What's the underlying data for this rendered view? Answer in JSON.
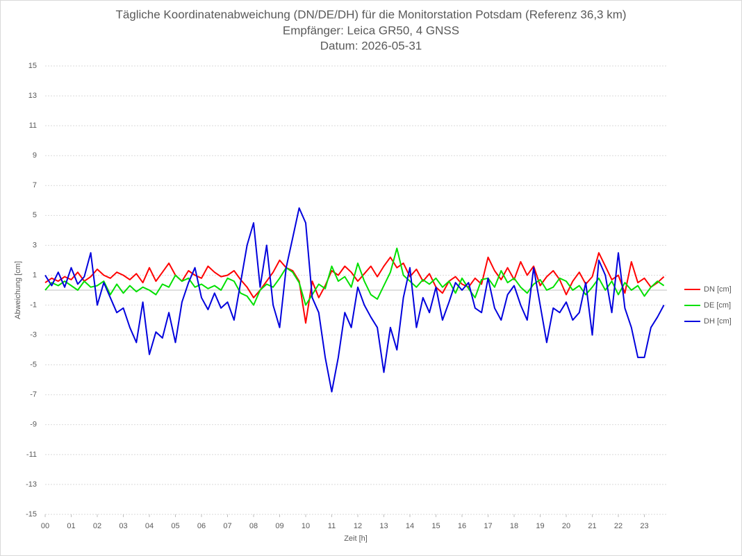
{
  "chart_data": {
    "type": "line",
    "title": "Tägliche Koordinatenabweichung (DN/DE/DH) für die Monitorstation Potsdam (Referenz 36,3 km)",
    "subtitle": "Empfänger: Leica GR50, 4 GNSS",
    "date_label": "Datum: 2026-05-31",
    "xlabel": "Zeit [h]",
    "ylabel": "Abweichung [cm]",
    "xlim": [
      0,
      24
    ],
    "ylim": [
      -15,
      15
    ],
    "yticks": [
      -15,
      -13,
      -11,
      -9,
      -7,
      -5,
      -3,
      -1,
      1,
      3,
      5,
      7,
      9,
      11,
      13,
      15
    ],
    "xticks": [
      {
        "value": 0,
        "label": "00"
      },
      {
        "value": 1,
        "label": "01"
      },
      {
        "value": 2,
        "label": "02"
      },
      {
        "value": 3,
        "label": "03"
      },
      {
        "value": 4,
        "label": "04"
      },
      {
        "value": 5,
        "label": "05"
      },
      {
        "value": 6,
        "label": "06"
      },
      {
        "value": 7,
        "label": "07"
      },
      {
        "value": 8,
        "label": "08"
      },
      {
        "value": 9,
        "label": "09"
      },
      {
        "value": 10,
        "label": "10"
      },
      {
        "value": 11,
        "label": "11"
      },
      {
        "value": 12,
        "label": "12"
      },
      {
        "value": 13,
        "label": "13"
      },
      {
        "value": 14,
        "label": "14"
      },
      {
        "value": 15,
        "label": "15"
      },
      {
        "value": 16,
        "label": "16"
      },
      {
        "value": 17,
        "label": "17"
      },
      {
        "value": 18,
        "label": "18"
      },
      {
        "value": 19,
        "label": "19"
      },
      {
        "value": 20,
        "label": "20"
      },
      {
        "value": 21,
        "label": "21"
      },
      {
        "value": 22,
        "label": "22"
      },
      {
        "value": 23,
        "label": "23"
      }
    ],
    "grid": true,
    "legend": "right",
    "x": [
      0,
      0.25,
      0.5,
      0.75,
      1,
      1.25,
      1.5,
      1.75,
      2,
      2.25,
      2.5,
      2.75,
      3,
      3.25,
      3.5,
      3.75,
      4,
      4.25,
      4.5,
      4.75,
      5,
      5.25,
      5.5,
      5.75,
      6,
      6.25,
      6.5,
      6.75,
      7,
      7.25,
      7.5,
      7.75,
      8,
      8.25,
      8.5,
      8.75,
      9,
      9.25,
      9.5,
      9.75,
      10,
      10.25,
      10.5,
      10.75,
      11,
      11.25,
      11.5,
      11.75,
      12,
      12.25,
      12.5,
      12.75,
      13,
      13.25,
      13.5,
      13.75,
      14,
      14.25,
      14.5,
      14.75,
      15,
      15.25,
      15.5,
      15.75,
      16,
      16.25,
      16.5,
      16.75,
      17,
      17.25,
      17.5,
      17.75,
      18,
      18.25,
      18.5,
      18.75,
      19,
      19.25,
      19.5,
      19.75,
      20,
      20.25,
      20.5,
      20.75,
      21,
      21.25,
      21.5,
      21.75,
      22,
      22.25,
      22.5,
      22.75,
      23,
      23.25,
      23.5,
      23.75
    ],
    "series": [
      {
        "name": "DN [cm]",
        "color": "#ff0000",
        "values": [
          0.5,
          0.8,
          0.6,
          0.9,
          0.7,
          1.2,
          0.6,
          0.9,
          1.4,
          1.0,
          0.8,
          1.2,
          1.0,
          0.7,
          1.1,
          0.5,
          1.5,
          0.6,
          1.2,
          1.8,
          1.0,
          0.6,
          1.3,
          1.0,
          0.8,
          1.6,
          1.2,
          0.9,
          1.0,
          1.3,
          0.7,
          0.2,
          -0.5,
          0.0,
          0.6,
          1.2,
          2.0,
          1.5,
          1.3,
          0.6,
          -2.2,
          0.6,
          -0.5,
          0.3,
          1.3,
          1.0,
          1.6,
          1.2,
          0.6,
          1.1,
          1.6,
          0.9,
          1.6,
          2.2,
          1.5,
          1.8,
          0.9,
          1.4,
          0.6,
          1.1,
          0.2,
          -0.2,
          0.6,
          0.9,
          0.4,
          0.2,
          0.8,
          0.4,
          2.2,
          1.3,
          0.7,
          1.5,
          0.7,
          1.9,
          1.0,
          1.6,
          0.3,
          0.9,
          1.3,
          0.7,
          -0.3,
          0.6,
          1.2,
          0.4,
          0.9,
          2.5,
          1.6,
          0.7,
          1.0,
          -0.2,
          1.9,
          0.5,
          0.8,
          0.2,
          0.5,
          0.9
        ]
      },
      {
        "name": "DE [cm]",
        "color": "#00e000",
        "values": [
          0.0,
          0.5,
          0.3,
          0.6,
          0.3,
          0.0,
          0.6,
          0.2,
          0.3,
          0.6,
          -0.3,
          0.4,
          -0.2,
          0.3,
          -0.1,
          0.2,
          0.0,
          -0.3,
          0.4,
          0.2,
          1.0,
          0.6,
          0.8,
          0.2,
          0.4,
          0.1,
          0.3,
          0.0,
          0.8,
          0.6,
          -0.2,
          -0.4,
          -1.0,
          0.0,
          0.4,
          0.2,
          0.8,
          1.5,
          1.2,
          0.5,
          -1.0,
          -0.3,
          0.4,
          0.1,
          1.6,
          0.6,
          0.9,
          0.2,
          1.8,
          0.6,
          -0.3,
          -0.6,
          0.3,
          1.2,
          2.8,
          1.0,
          0.6,
          0.2,
          0.7,
          0.4,
          0.8,
          0.2,
          0.6,
          -0.2,
          0.8,
          0.1,
          -0.5,
          0.7,
          0.8,
          0.2,
          1.3,
          0.5,
          0.8,
          0.2,
          -0.2,
          0.4,
          0.7,
          0.0,
          0.2,
          0.8,
          0.6,
          0.0,
          0.3,
          -0.3,
          0.2,
          0.8,
          0.0,
          0.6,
          -0.3,
          0.5,
          0.0,
          0.3,
          -0.4,
          0.2,
          0.6,
          0.3
        ]
      },
      {
        "name": "DH [cm]",
        "color": "#0000dd",
        "values": [
          1.0,
          0.3,
          1.2,
          0.2,
          1.5,
          0.4,
          0.9,
          2.5,
          -1.0,
          0.5,
          -0.5,
          -1.5,
          -1.2,
          -2.5,
          -3.5,
          -0.8,
          -4.3,
          -2.8,
          -3.2,
          -1.5,
          -3.5,
          -0.8,
          0.5,
          1.5,
          -0.5,
          -1.3,
          -0.2,
          -1.2,
          -0.8,
          -2.0,
          0.5,
          3.0,
          4.5,
          0.2,
          3.0,
          -1.0,
          -2.5,
          1.5,
          3.5,
          5.5,
          4.5,
          -0.5,
          -1.5,
          -4.5,
          -6.8,
          -4.5,
          -1.5,
          -2.5,
          0.2,
          -1.0,
          -1.8,
          -2.5,
          -5.5,
          -2.5,
          -4.0,
          -0.5,
          1.5,
          -2.5,
          -0.5,
          -1.5,
          0.2,
          -2.0,
          -0.8,
          0.5,
          0.0,
          0.5,
          -1.2,
          -1.5,
          0.8,
          -1.2,
          -2.0,
          -0.3,
          0.3,
          -1.0,
          -2.0,
          1.5,
          -1.0,
          -3.5,
          -1.2,
          -1.5,
          -0.8,
          -2.0,
          -1.5,
          0.5,
          -3.0,
          2.0,
          1.0,
          -1.5,
          2.5,
          -1.2,
          -2.5,
          -4.5,
          -4.5,
          -2.5,
          -1.8,
          -1.0
        ]
      }
    ]
  }
}
